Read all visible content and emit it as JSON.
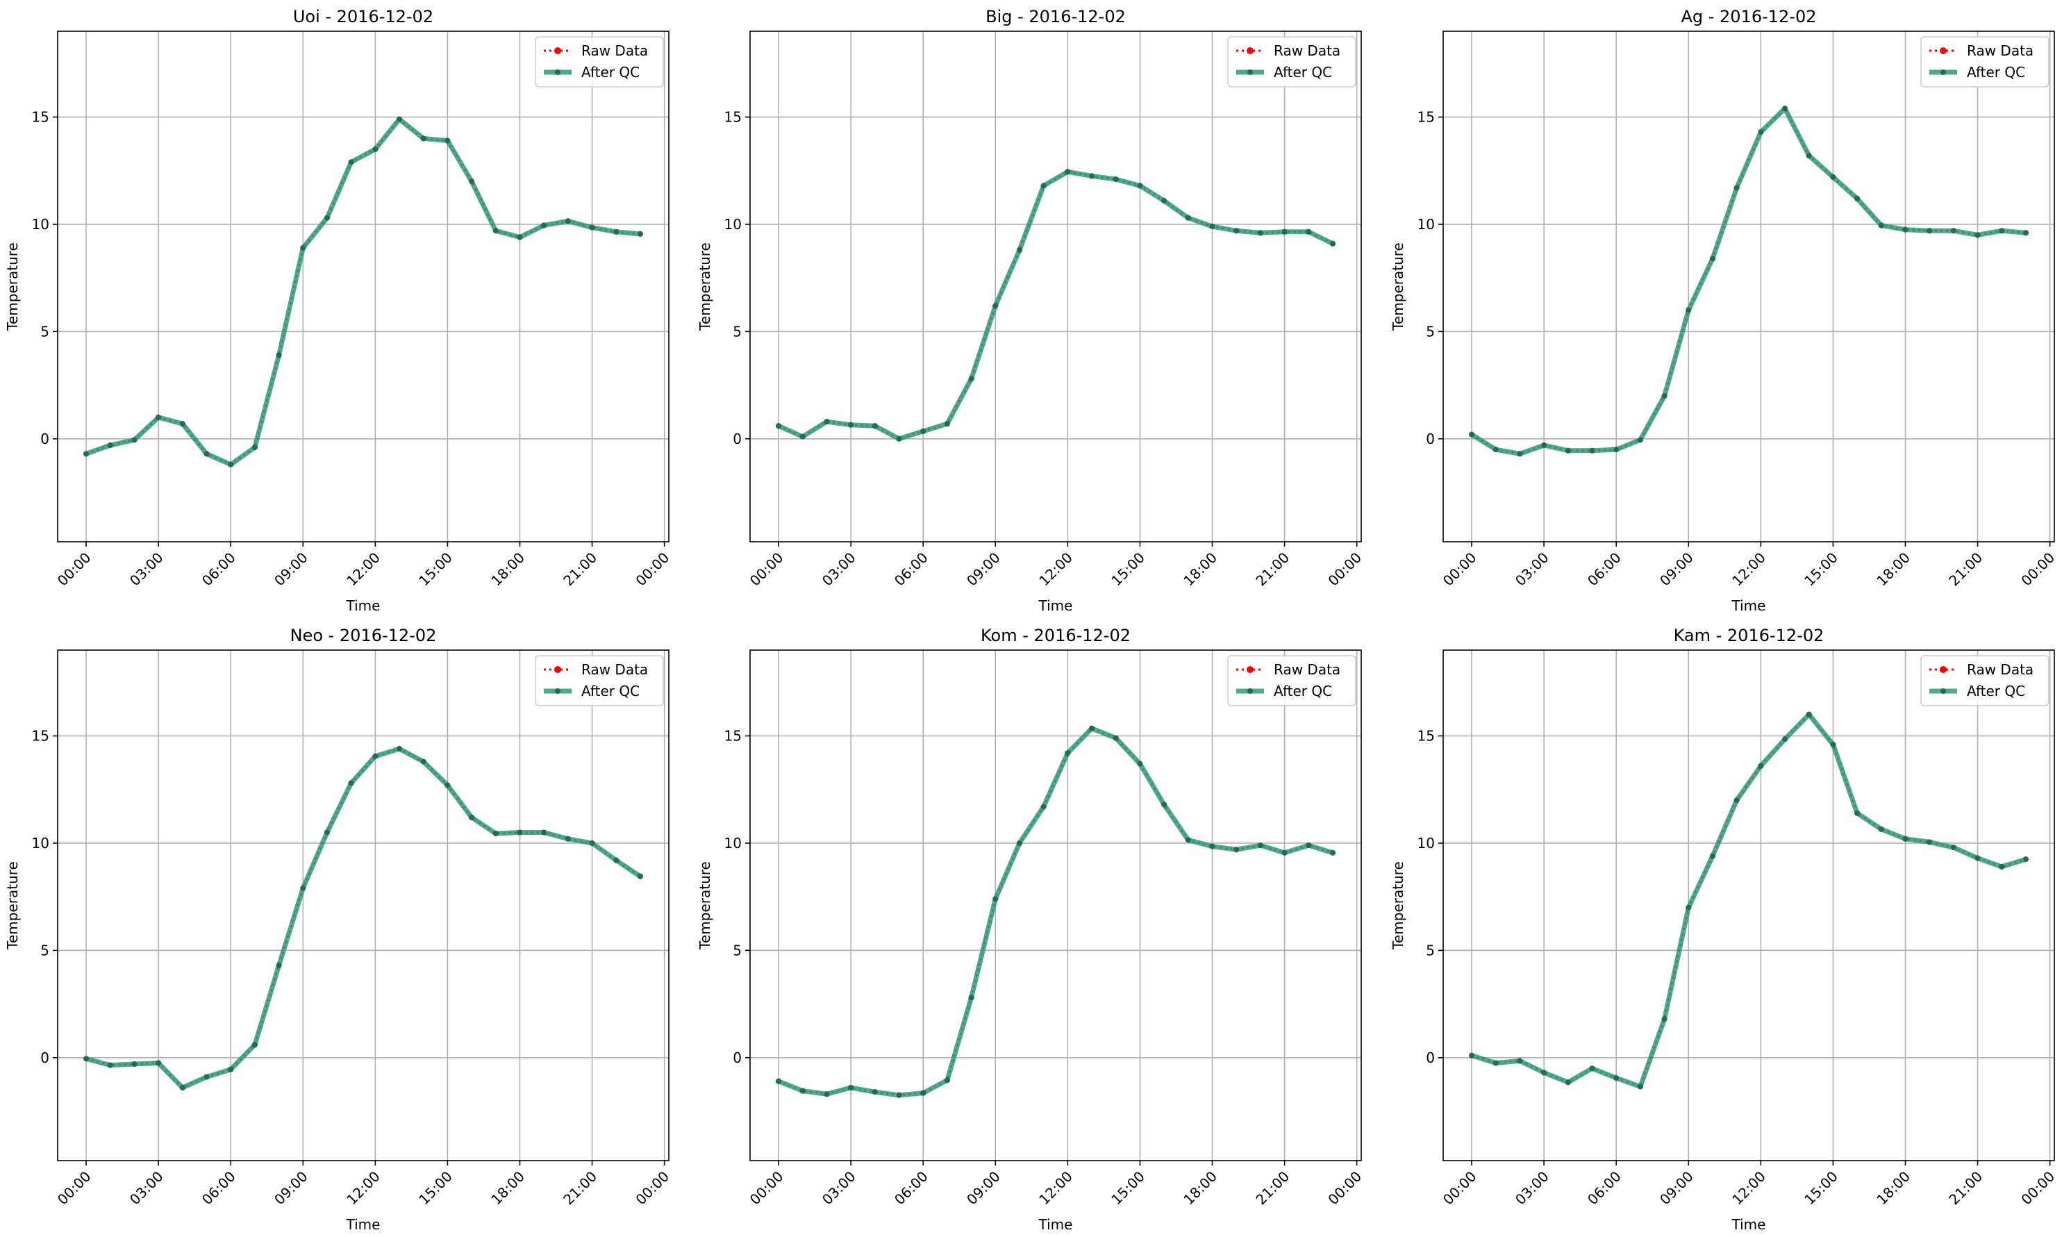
{
  "chart_data": [
    {
      "type": "line",
      "title": "Uoi - 2016-12-02",
      "xlabel": "Time",
      "ylabel": "Temperature",
      "xlim": [
        "2016-12-01T22:49",
        "2016-12-03T00:11"
      ],
      "ylim": [
        -4.8,
        19.0
      ],
      "xticks": [
        "00:00",
        "03:00",
        "06:00",
        "09:00",
        "12:00",
        "15:00",
        "18:00",
        "21:00",
        "00:00"
      ],
      "yticks": [
        0,
        5,
        10,
        15
      ],
      "grid": true,
      "legend": "top-right",
      "x": [
        "00:00",
        "01:00",
        "02:00",
        "03:00",
        "04:00",
        "05:00",
        "06:00",
        "07:00",
        "08:00",
        "09:00",
        "10:00",
        "11:00",
        "12:00",
        "13:00",
        "14:00",
        "15:00",
        "16:00",
        "17:00",
        "18:00",
        "19:00",
        "20:00",
        "21:00",
        "22:00",
        "23:00"
      ],
      "series": [
        {
          "name": "Raw Data",
          "color": "#ff0000",
          "style": "dotted",
          "values": [
            -0.7,
            -0.3,
            -0.05,
            1.0,
            0.7,
            -0.7,
            -1.2,
            -0.4,
            3.9,
            8.9,
            10.3,
            12.9,
            13.5,
            14.9,
            14.0,
            13.9,
            12.0,
            9.7,
            9.4,
            9.95,
            10.15,
            9.85,
            9.65,
            9.55
          ]
        },
        {
          "name": "After QC",
          "color": "#2e9a7a",
          "style": "solid",
          "values": [
            -0.7,
            -0.3,
            -0.05,
            1.0,
            0.7,
            -0.7,
            -1.2,
            -0.4,
            3.9,
            8.9,
            10.3,
            12.9,
            13.5,
            14.9,
            14.0,
            13.9,
            12.0,
            9.7,
            9.4,
            9.95,
            10.15,
            9.85,
            9.65,
            9.55
          ]
        }
      ]
    },
    {
      "type": "line",
      "title": "Big - 2016-12-02",
      "xlabel": "Time",
      "ylabel": "Temperature",
      "xlim": [
        "2016-12-01T22:49",
        "2016-12-03T00:11"
      ],
      "ylim": [
        -4.8,
        19.0
      ],
      "xticks": [
        "00:00",
        "03:00",
        "06:00",
        "09:00",
        "12:00",
        "15:00",
        "18:00",
        "21:00",
        "00:00"
      ],
      "yticks": [
        0,
        5,
        10,
        15
      ],
      "grid": true,
      "legend": "top-right",
      "x": [
        "00:00",
        "01:00",
        "02:00",
        "03:00",
        "04:00",
        "05:00",
        "06:00",
        "07:00",
        "08:00",
        "09:00",
        "10:00",
        "11:00",
        "12:00",
        "13:00",
        "14:00",
        "15:00",
        "16:00",
        "17:00",
        "18:00",
        "19:00",
        "20:00",
        "21:00",
        "22:00",
        "23:00"
      ],
      "series": [
        {
          "name": "Raw Data",
          "color": "#ff0000",
          "style": "dotted",
          "values": [
            0.6,
            0.1,
            0.8,
            0.65,
            0.6,
            0.0,
            0.35,
            0.7,
            2.8,
            6.2,
            8.8,
            11.8,
            12.45,
            12.25,
            12.1,
            11.8,
            11.1,
            10.3,
            9.9,
            9.7,
            9.6,
            9.65,
            9.65,
            9.1
          ]
        },
        {
          "name": "After QC",
          "color": "#2e9a7a",
          "style": "solid",
          "values": [
            0.6,
            0.1,
            0.8,
            0.65,
            0.6,
            0.0,
            0.35,
            0.7,
            2.8,
            6.2,
            8.8,
            11.8,
            12.45,
            12.25,
            12.1,
            11.8,
            11.1,
            10.3,
            9.9,
            9.7,
            9.6,
            9.65,
            9.65,
            9.1
          ]
        }
      ]
    },
    {
      "type": "line",
      "title": "Ag - 2016-12-02",
      "xlabel": "Time",
      "ylabel": "Temperature",
      "xlim": [
        "2016-12-01T22:49",
        "2016-12-03T00:11"
      ],
      "ylim": [
        -4.8,
        19.0
      ],
      "xticks": [
        "00:00",
        "03:00",
        "06:00",
        "09:00",
        "12:00",
        "15:00",
        "18:00",
        "21:00",
        "00:00"
      ],
      "yticks": [
        0,
        5,
        10,
        15
      ],
      "grid": true,
      "legend": "top-right",
      "x": [
        "00:00",
        "01:00",
        "02:00",
        "03:00",
        "04:00",
        "05:00",
        "06:00",
        "07:00",
        "08:00",
        "09:00",
        "10:00",
        "11:00",
        "12:00",
        "13:00",
        "14:00",
        "15:00",
        "16:00",
        "17:00",
        "18:00",
        "19:00",
        "20:00",
        "21:00",
        "22:00",
        "23:00"
      ],
      "series": [
        {
          "name": "Raw Data",
          "color": "#ff0000",
          "style": "dotted",
          "values": [
            0.2,
            -0.5,
            -0.7,
            -0.3,
            -0.55,
            -0.55,
            -0.5,
            -0.05,
            2.0,
            6.0,
            8.4,
            11.7,
            14.3,
            15.4,
            13.2,
            12.2,
            11.2,
            9.95,
            9.75,
            9.7,
            9.7,
            9.5,
            9.7,
            9.6
          ]
        },
        {
          "name": "After QC",
          "color": "#2e9a7a",
          "style": "solid",
          "values": [
            0.2,
            -0.5,
            -0.7,
            -0.3,
            -0.55,
            -0.55,
            -0.5,
            -0.05,
            2.0,
            6.0,
            8.4,
            11.7,
            14.3,
            15.4,
            13.2,
            12.2,
            11.2,
            9.95,
            9.75,
            9.7,
            9.7,
            9.5,
            9.7,
            9.6
          ]
        }
      ]
    },
    {
      "type": "line",
      "title": "Neo - 2016-12-02",
      "xlabel": "Time",
      "ylabel": "Temperature",
      "xlim": [
        "2016-12-01T22:49",
        "2016-12-03T00:11"
      ],
      "ylim": [
        -4.8,
        19.0
      ],
      "xticks": [
        "00:00",
        "03:00",
        "06:00",
        "09:00",
        "12:00",
        "15:00",
        "18:00",
        "21:00",
        "00:00"
      ],
      "yticks": [
        0,
        5,
        10,
        15
      ],
      "grid": true,
      "legend": "top-right",
      "x": [
        "00:00",
        "01:00",
        "02:00",
        "03:00",
        "04:00",
        "05:00",
        "06:00",
        "07:00",
        "08:00",
        "09:00",
        "10:00",
        "11:00",
        "12:00",
        "13:00",
        "14:00",
        "15:00",
        "16:00",
        "17:00",
        "18:00",
        "19:00",
        "20:00",
        "21:00",
        "22:00",
        "23:00"
      ],
      "series": [
        {
          "name": "Raw Data",
          "color": "#ff0000",
          "style": "dotted",
          "values": [
            -0.05,
            -0.35,
            -0.3,
            -0.25,
            -1.4,
            -0.9,
            -0.55,
            0.6,
            4.3,
            7.9,
            10.5,
            12.8,
            14.05,
            14.4,
            13.8,
            12.7,
            11.2,
            10.45,
            10.5,
            10.5,
            10.2,
            10.0,
            9.2,
            8.45
          ]
        },
        {
          "name": "After QC",
          "color": "#2e9a7a",
          "style": "solid",
          "values": [
            -0.05,
            -0.35,
            -0.3,
            -0.25,
            -1.4,
            -0.9,
            -0.55,
            0.6,
            4.3,
            7.9,
            10.5,
            12.8,
            14.05,
            14.4,
            13.8,
            12.7,
            11.2,
            10.45,
            10.5,
            10.5,
            10.2,
            10.0,
            9.2,
            8.45
          ]
        }
      ]
    },
    {
      "type": "line",
      "title": "Kom - 2016-12-02",
      "xlabel": "Time",
      "ylabel": "Temperature",
      "xlim": [
        "2016-12-01T22:49",
        "2016-12-03T00:11"
      ],
      "ylim": [
        -4.8,
        19.0
      ],
      "xticks": [
        "00:00",
        "03:00",
        "06:00",
        "09:00",
        "12:00",
        "15:00",
        "18:00",
        "21:00",
        "00:00"
      ],
      "yticks": [
        0,
        5,
        10,
        15
      ],
      "grid": true,
      "legend": "top-right",
      "x": [
        "00:00",
        "01:00",
        "02:00",
        "03:00",
        "04:00",
        "05:00",
        "06:00",
        "07:00",
        "08:00",
        "09:00",
        "10:00",
        "11:00",
        "12:00",
        "13:00",
        "14:00",
        "15:00",
        "16:00",
        "17:00",
        "18:00",
        "19:00",
        "20:00",
        "21:00",
        "22:00",
        "23:00"
      ],
      "series": [
        {
          "name": "Raw Data",
          "color": "#ff0000",
          "style": "dotted",
          "values": [
            -1.1,
            -1.55,
            -1.7,
            -1.4,
            -1.6,
            -1.75,
            -1.65,
            -1.05,
            2.8,
            7.4,
            10.0,
            11.7,
            14.2,
            15.35,
            14.9,
            13.7,
            11.8,
            10.15,
            9.85,
            9.7,
            9.9,
            9.55,
            9.9,
            9.55
          ]
        },
        {
          "name": "After QC",
          "color": "#2e9a7a",
          "style": "solid",
          "values": [
            -1.1,
            -1.55,
            -1.7,
            -1.4,
            -1.6,
            -1.75,
            -1.65,
            -1.05,
            2.8,
            7.4,
            10.0,
            11.7,
            14.2,
            15.35,
            14.9,
            13.7,
            11.8,
            10.15,
            9.85,
            9.7,
            9.9,
            9.55,
            9.9,
            9.55
          ]
        }
      ]
    },
    {
      "type": "line",
      "title": "Kam - 2016-12-02",
      "xlabel": "Time",
      "ylabel": "Temperature",
      "xlim": [
        "2016-12-01T22:49",
        "2016-12-03T00:11"
      ],
      "ylim": [
        -4.8,
        19.0
      ],
      "xticks": [
        "00:00",
        "03:00",
        "06:00",
        "09:00",
        "12:00",
        "15:00",
        "18:00",
        "21:00",
        "00:00"
      ],
      "yticks": [
        0,
        5,
        10,
        15
      ],
      "grid": true,
      "legend": "top-right",
      "x": [
        "00:00",
        "01:00",
        "02:00",
        "03:00",
        "04:00",
        "05:00",
        "06:00",
        "07:00",
        "08:00",
        "09:00",
        "10:00",
        "11:00",
        "12:00",
        "13:00",
        "14:00",
        "15:00",
        "16:00",
        "17:00",
        "18:00",
        "19:00",
        "20:00",
        "21:00",
        "22:00",
        "23:00"
      ],
      "series": [
        {
          "name": "Raw Data",
          "color": "#ff0000",
          "style": "dotted",
          "values": [
            0.1,
            -0.25,
            -0.15,
            -0.7,
            -1.15,
            -0.5,
            -0.95,
            -1.35,
            1.8,
            7.0,
            9.4,
            12.0,
            13.6,
            14.85,
            16.0,
            14.6,
            11.4,
            10.65,
            10.2,
            10.05,
            9.8,
            9.3,
            8.9,
            9.25
          ]
        },
        {
          "name": "After QC",
          "color": "#2e9a7a",
          "style": "solid",
          "values": [
            0.1,
            -0.25,
            -0.15,
            -0.7,
            -1.15,
            -0.5,
            -0.95,
            -1.35,
            1.8,
            7.0,
            9.4,
            12.0,
            13.6,
            14.85,
            16.0,
            14.6,
            11.4,
            10.65,
            10.2,
            10.05,
            9.8,
            9.3,
            8.9,
            9.25
          ]
        }
      ]
    }
  ]
}
